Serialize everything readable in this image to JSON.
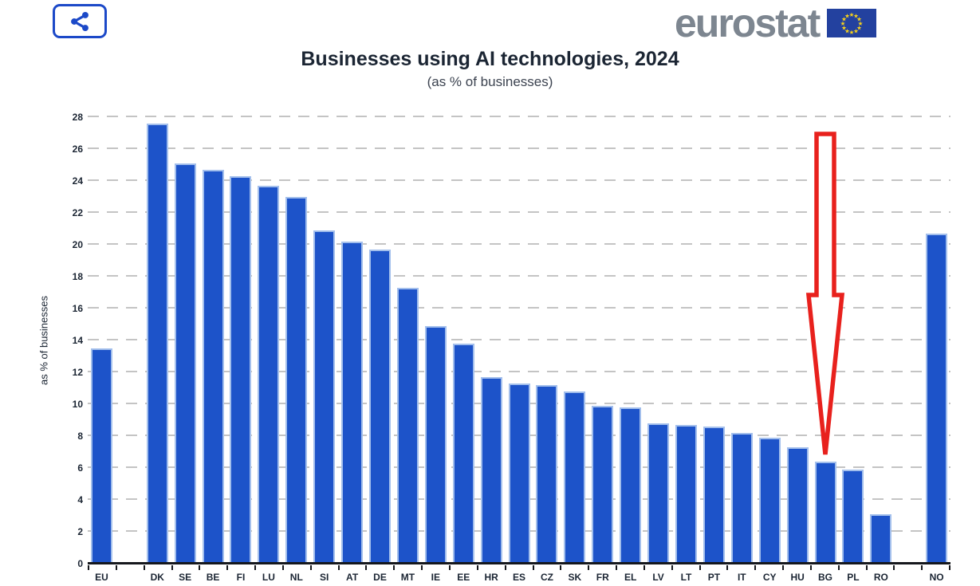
{
  "header": {
    "share_icon": "share-icon",
    "logo_text": "eurostat",
    "flag": {
      "icon": "eu-flag-icon",
      "star_glyph": "★",
      "star_count": 12
    }
  },
  "colors": {
    "share_blue": "#1c49c8",
    "logo_gray": "#7d8690",
    "flag_blue": "#23419f",
    "star_yellow": "#f7d21a",
    "axis_ink": "#15171c",
    "text_ink": "#1b2533",
    "grid_gray": "#c4c4c4"
  },
  "chart_data": {
    "type": "bar",
    "title": "Businesses using AI technologies, 2024",
    "subtitle": "(as % of businesses)",
    "xlabel": "",
    "ylabel": "as % of businesses",
    "ylim": [
      0,
      28
    ],
    "ytick_step": 2,
    "grid": "horizontal-dashed",
    "legend": "none",
    "categories": [
      "EU",
      "DK",
      "SE",
      "BE",
      "FI",
      "LU",
      "NL",
      "SI",
      "AT",
      "DE",
      "MT",
      "IE",
      "EE",
      "HR",
      "ES",
      "CZ",
      "SK",
      "FR",
      "EL",
      "LV",
      "LT",
      "PT",
      "IT",
      "CY",
      "HU",
      "BG",
      "PL",
      "RO",
      "NO"
    ],
    "values": [
      13.5,
      27.6,
      25.1,
      24.7,
      24.3,
      23.7,
      23.0,
      20.9,
      20.2,
      19.7,
      17.3,
      14.9,
      13.8,
      11.7,
      11.3,
      11.2,
      10.8,
      9.9,
      9.8,
      8.8,
      8.7,
      8.6,
      8.2,
      7.9,
      7.3,
      6.4,
      5.9,
      3.1,
      20.7
    ],
    "spacer_after": [
      "EU",
      "RO"
    ],
    "bar_color": "#1d53c9",
    "bar_border_color": "#a3bfec",
    "annotation": {
      "type": "down-arrow-outline",
      "target": "BG",
      "color": "#e8211d"
    }
  }
}
